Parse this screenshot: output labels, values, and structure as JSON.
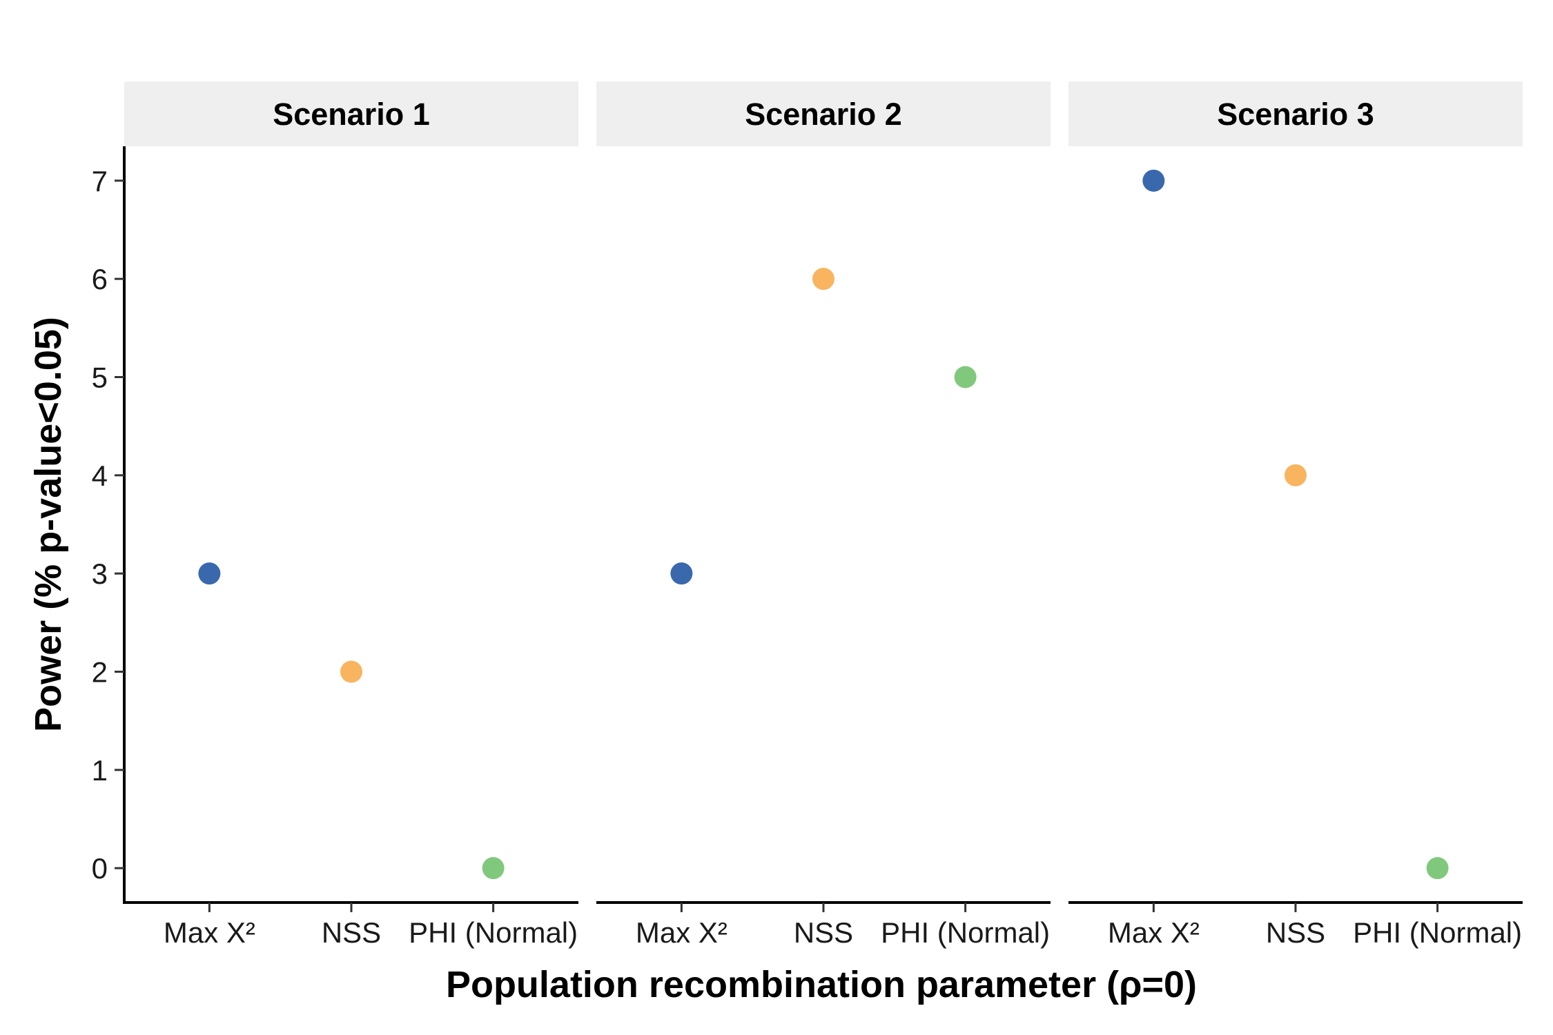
{
  "chart_data": {
    "type": "scatter",
    "xlabel": "Population recombination parameter (ρ=0)",
    "ylabel": "Power (% p-value<0.05)",
    "categories": [
      "Max X²",
      "NSS",
      "PHI (Normal)"
    ],
    "colors": {
      "Max X²": "#3a68ad",
      "NSS": "#f9b45f",
      "PHI (Normal)": "#80c97c"
    },
    "yticks": [
      0,
      1,
      2,
      3,
      4,
      5,
      6,
      7
    ],
    "ylim": [
      -0.35,
      7.35
    ],
    "grid": false,
    "legend": "none",
    "strip_background": "#efefef",
    "panels": [
      {
        "title": "Scenario 1",
        "values": [
          3,
          2,
          0
        ]
      },
      {
        "title": "Scenario 2",
        "values": [
          3,
          6,
          5
        ]
      },
      {
        "title": "Scenario 3",
        "values": [
          7,
          4,
          0
        ]
      }
    ]
  }
}
